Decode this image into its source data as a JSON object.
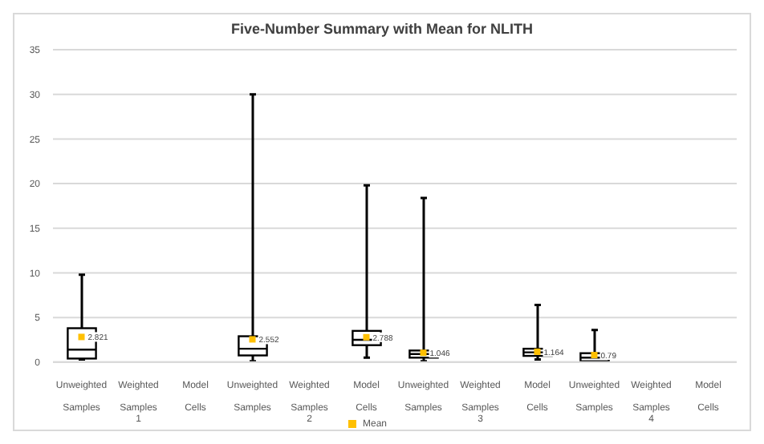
{
  "chart_data": {
    "type": "box",
    "title": "Five-Number Summary with Mean for NLITH",
    "categories": [
      "Unweighted\nSamples",
      "Weighted\nSamples 1",
      "Model\nCells",
      "Unweighted\nSamples",
      "Weighted\nSamples 2",
      "Model\nCells",
      "Unweighted\nSamples",
      "Weighted\nSamples 3",
      "Model\nCells",
      "Unweighted\nSamples",
      "Weighted\nSamples 4",
      "Model\nCells"
    ],
    "boxes": [
      {
        "low": 0.3,
        "q1": 0.4,
        "median": 1.4,
        "q3": 3.8,
        "high": 9.8
      },
      null,
      null,
      {
        "low": 0.1,
        "q1": 0.75,
        "median": 1.5,
        "q3": 2.9,
        "high": 30
      },
      null,
      {
        "low": 0.5,
        "q1": 1.9,
        "median": 2.5,
        "q3": 3.5,
        "high": 19.8
      },
      {
        "low": 0.1,
        "q1": 0.5,
        "median": 0.9,
        "q3": 1.3,
        "high": 18.4
      },
      null,
      {
        "low": 0.3,
        "q1": 0.7,
        "median": 1.1,
        "q3": 1.5,
        "high": 6.4
      },
      {
        "low": 0,
        "q1": 0.1,
        "median": 0.5,
        "q3": 1.0,
        "high": 3.6
      },
      null,
      null
    ],
    "series": [
      {
        "name": "Mean",
        "type": "scatter",
        "color": "#ffc000",
        "marker": "square",
        "values": [
          2.821,
          null,
          null,
          2.552,
          null,
          2.788,
          1.046,
          null,
          1.164,
          0.79,
          null,
          null
        ],
        "value_labels": [
          "2.821",
          null,
          null,
          "2.552",
          null,
          "2.788",
          "1.046",
          null,
          "1.164",
          "0.79",
          null,
          null
        ]
      }
    ],
    "ylim": [
      0,
      35
    ],
    "yticks": [
      0,
      5,
      10,
      15,
      20,
      25,
      30,
      35
    ],
    "grid": "y",
    "legend": "bottom"
  }
}
